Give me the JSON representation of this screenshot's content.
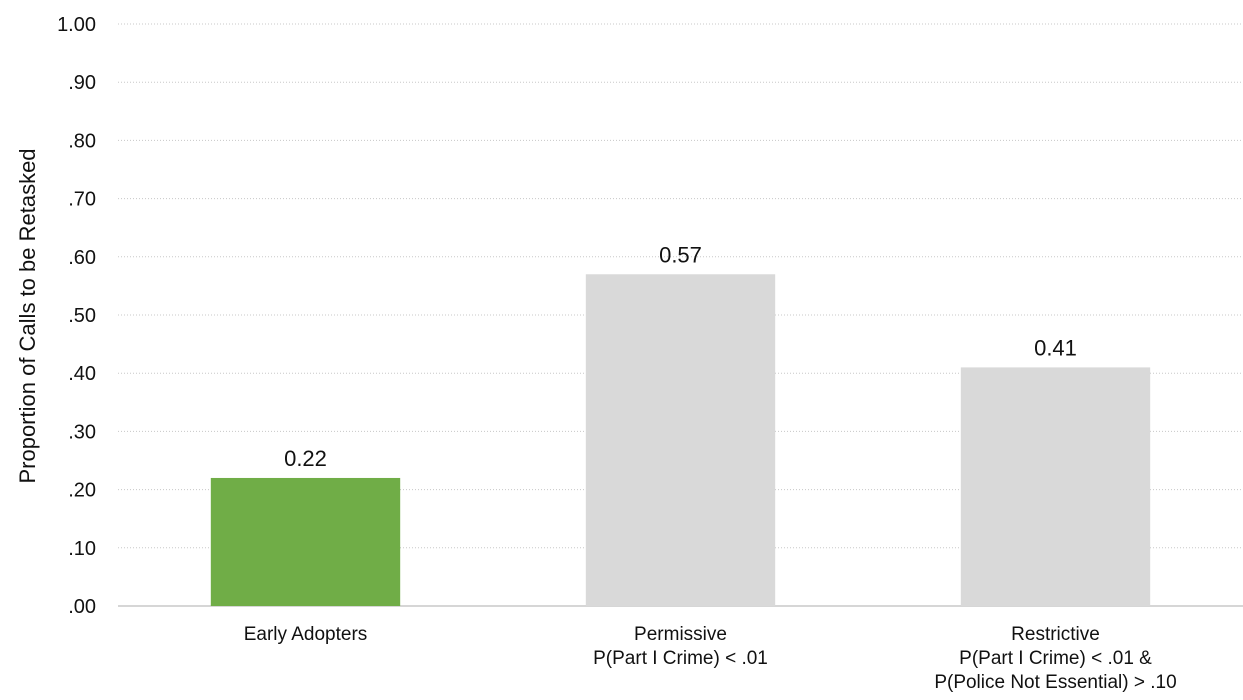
{
  "chart_data": {
    "type": "bar",
    "title": "",
    "xlabel": "",
    "ylabel": "Proportion of Calls to be Retasked",
    "ylim": [
      0,
      1
    ],
    "yticks": [
      0,
      0.1,
      0.2,
      0.3,
      0.4,
      0.5,
      0.6,
      0.7,
      0.8,
      0.9,
      1.0
    ],
    "ytick_labels": [
      ".00",
      ".10",
      ".20",
      ".30",
      ".40",
      ".50",
      ".60",
      ".70",
      ".80",
      ".90",
      "1.00"
    ],
    "grid": true,
    "legend": "none",
    "categories": [
      [
        "Early Adopters"
      ],
      [
        "Permissive",
        "P(Part I Crime) < .01"
      ],
      [
        "Restrictive",
        "P(Part I Crime) < .01 &",
        "P(Police Not Essential) > .10"
      ]
    ],
    "values": [
      0.22,
      0.57,
      0.41
    ],
    "data_labels": [
      "0.22",
      "0.57",
      "0.41"
    ],
    "bar_colors": [
      "#70ad47",
      "#d9d9d9",
      "#d9d9d9"
    ]
  }
}
